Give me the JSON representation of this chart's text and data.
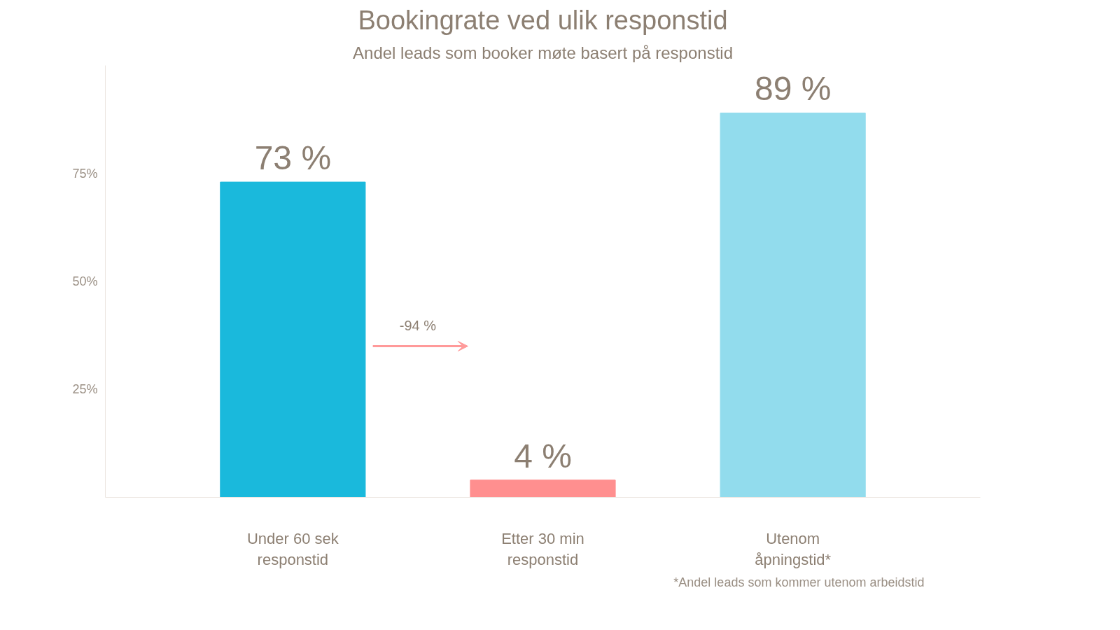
{
  "chart_data": {
    "type": "bar",
    "title": "Bookingrate ved ulik responstid",
    "subtitle": "Andel leads som booker møte basert på responstid",
    "categories": [
      "Under 60 sek\nresponstid",
      "Etter 30 min\nresponstid",
      "Utenom\nåpningstid*"
    ],
    "values": [
      73,
      4,
      89
    ],
    "colors": [
      "#1ab9dc",
      "#ff8f8f",
      "#92dced"
    ],
    "value_labels": [
      "73 %",
      "4 %",
      "89 %"
    ],
    "ylim": [
      0,
      100
    ],
    "yticks": [
      {
        "value": 25,
        "label": "25%"
      },
      {
        "value": 50,
        "label": "50%"
      },
      {
        "value": 75,
        "label": "75%"
      }
    ],
    "annotations": [
      "-94 %",
      "*Andel leads som kommer utenom arbeidstid"
    ]
  }
}
